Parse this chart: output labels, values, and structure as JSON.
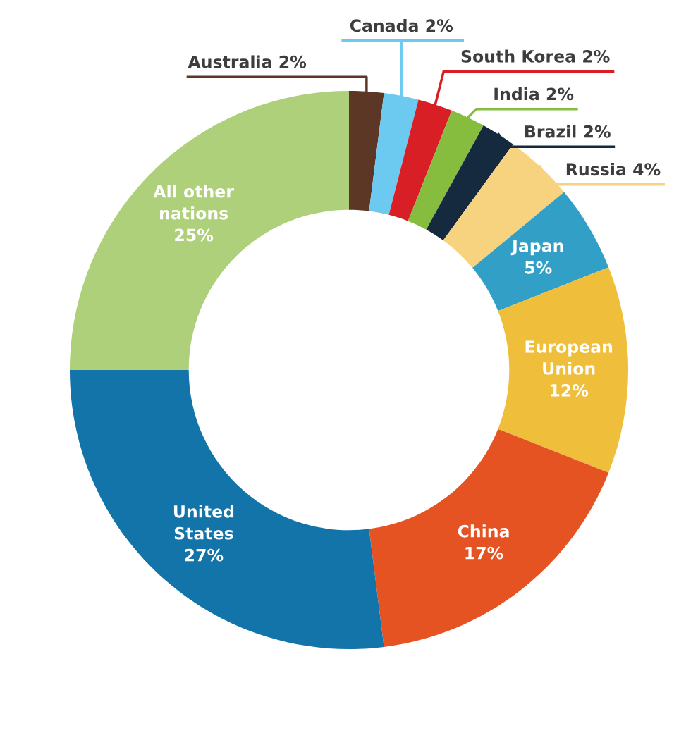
{
  "chart_data": {
    "type": "donut",
    "categories": [
      "Australia",
      "Canada",
      "South Korea",
      "India",
      "Brazil",
      "Russia",
      "Japan",
      "European Union",
      "China",
      "United States",
      "All other nations"
    ],
    "values": [
      2,
      2,
      2,
      2,
      2,
      4,
      5,
      12,
      17,
      27,
      25
    ],
    "value_labels": [
      "2%",
      "2%",
      "2%",
      "2%",
      "2%",
      "4%",
      "5%",
      "12%",
      "17%",
      "27%",
      "25%"
    ],
    "colors": [
      "#5c3726",
      "#6ccaf0",
      "#d91f26",
      "#86bd3f",
      "#152a3f",
      "#f7d27f",
      "#329fc7",
      "#efbe3b",
      "#e55323",
      "#1274a8",
      "#afd07a"
    ],
    "legend": false
  }
}
